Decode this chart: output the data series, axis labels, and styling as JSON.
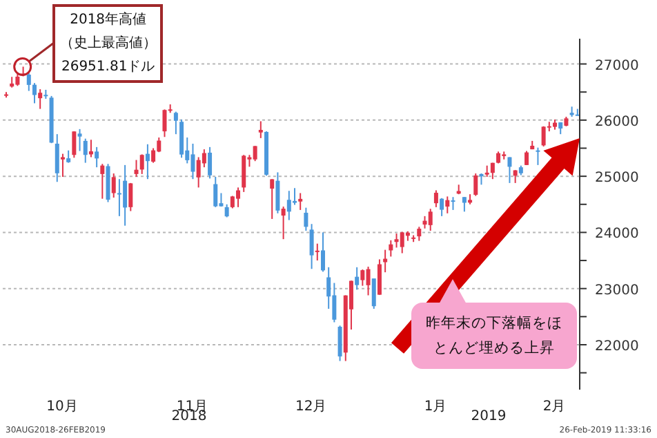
{
  "chart_data": {
    "type": "candlestick",
    "categories": [
      null,
      null,
      null,
      null,
      null,
      null,
      null,
      null,
      null,
      null,
      "10月",
      null,
      null,
      null,
      null,
      null,
      null,
      null,
      null,
      null,
      null,
      null,
      null,
      null,
      null,
      null,
      null,
      null,
      null,
      null,
      null,
      null,
      null,
      "11月",
      null,
      null,
      null,
      null,
      null,
      null,
      null,
      null,
      null,
      null,
      null,
      null,
      null,
      null,
      null,
      null,
      null,
      null,
      null,
      null,
      "12月",
      null,
      null,
      null,
      null,
      null,
      null,
      null,
      null,
      null,
      null,
      null,
      null,
      null,
      null,
      null,
      null,
      null,
      null,
      null,
      null,
      null,
      "1月",
      null,
      null,
      null,
      null,
      null,
      null,
      null,
      null,
      null,
      null,
      null,
      null,
      null,
      null,
      null,
      null,
      null,
      null,
      null,
      null,
      "2月",
      null,
      null,
      null,
      null
    ],
    "ohlc": [
      [
        26440,
        26500,
        26400,
        26458
      ],
      [
        26598,
        26770,
        26580,
        26651
      ],
      [
        26630,
        26830,
        26610,
        26774
      ],
      [
        26820,
        26951.81,
        26780,
        26828
      ],
      [
        26810,
        26840,
        26520,
        26627
      ],
      [
        26630,
        26660,
        26300,
        26447
      ],
      [
        26390,
        26550,
        26200,
        26487
      ],
      [
        26450,
        26540,
        26380,
        26430
      ],
      [
        26400,
        26430,
        25590,
        25599
      ],
      [
        25580,
        25750,
        24900,
        25053
      ],
      [
        25300,
        25400,
        24990,
        25340
      ],
      [
        25320,
        25460,
        25240,
        25250
      ],
      [
        25380,
        25800,
        25330,
        25798
      ],
      [
        25760,
        25840,
        25450,
        25707
      ],
      [
        25630,
        25670,
        25240,
        25380
      ],
      [
        25390,
        25650,
        25340,
        25444
      ],
      [
        25440,
        25520,
        25160,
        25317
      ],
      [
        25040,
        25220,
        24600,
        25191
      ],
      [
        25180,
        25220,
        24540,
        24583
      ],
      [
        24700,
        25050,
        24620,
        24985
      ],
      [
        24700,
        24950,
        24290,
        24688
      ],
      [
        24920,
        25200,
        24120,
        24443
      ],
      [
        24450,
        24880,
        24380,
        24874
      ],
      [
        25040,
        25290,
        24990,
        25116
      ],
      [
        25120,
        25390,
        25040,
        25380
      ],
      [
        25400,
        25570,
        24950,
        25270
      ],
      [
        25260,
        25500,
        25240,
        25462
      ],
      [
        25440,
        25690,
        25430,
        25635
      ],
      [
        25800,
        26190,
        25700,
        26180
      ],
      [
        26190,
        26280,
        26130,
        26191
      ],
      [
        26130,
        26150,
        25750,
        25989
      ],
      [
        25970,
        26010,
        25330,
        25387
      ],
      [
        25460,
        25690,
        25230,
        25286
      ],
      [
        25390,
        25580,
        24950,
        25081
      ],
      [
        24980,
        25340,
        24800,
        25289
      ],
      [
        25230,
        25480,
        25160,
        25413
      ],
      [
        25420,
        25520,
        24960,
        25017
      ],
      [
        24860,
        24990,
        24450,
        24465
      ],
      [
        24520,
        24700,
        24460,
        24465
      ],
      [
        24450,
        24500,
        24270,
        24286
      ],
      [
        24450,
        24650,
        24430,
        24641
      ],
      [
        24600,
        24800,
        24450,
        24749
      ],
      [
        24800,
        25380,
        24720,
        25366
      ],
      [
        25300,
        25380,
        25170,
        25339
      ],
      [
        25300,
        25540,
        25270,
        25538
      ],
      [
        25780,
        25980,
        25680,
        25826
      ],
      [
        25790,
        25800,
        25010,
        25027
      ],
      [
        24780,
        24950,
        24240,
        24947
      ],
      [
        24920,
        25070,
        24340,
        24389
      ],
      [
        24300,
        24460,
        23880,
        24423
      ],
      [
        24580,
        24740,
        24220,
        24370
      ],
      [
        24560,
        24790,
        24490,
        24527
      ],
      [
        24550,
        24700,
        24400,
        24597
      ],
      [
        24350,
        24440,
        24030,
        24100
      ],
      [
        24050,
        24150,
        23350,
        23592
      ],
      [
        23650,
        23800,
        23500,
        23675
      ],
      [
        23680,
        24000,
        23300,
        23324
      ],
      [
        23200,
        23380,
        22640,
        22859
      ],
      [
        22880,
        23100,
        22400,
        22446
      ],
      [
        22320,
        22340,
        21710,
        21792
      ],
      [
        21860,
        22880,
        21710,
        22878
      ],
      [
        22630,
        23140,
        22270,
        23138
      ],
      [
        23210,
        23380,
        22980,
        23062
      ],
      [
        23150,
        23340,
        23050,
        23327
      ],
      [
        23060,
        23390,
        22880,
        23346
      ],
      [
        23180,
        23180,
        22640,
        22686
      ],
      [
        22890,
        23520,
        22890,
        23433
      ],
      [
        23470,
        23690,
        23290,
        23531
      ],
      [
        23680,
        23860,
        23570,
        23787
      ],
      [
        23830,
        23980,
        23730,
        23879
      ],
      [
        23740,
        24010,
        23630,
        24001
      ],
      [
        23940,
        24020,
        23850,
        23996
      ],
      [
        23890,
        23950,
        23830,
        23909
      ],
      [
        23930,
        24100,
        23850,
        24066
      ],
      [
        24140,
        24290,
        24070,
        24207
      ],
      [
        24130,
        24420,
        24030,
        24370
      ],
      [
        24520,
        24750,
        24450,
        24706
      ],
      [
        24600,
        24610,
        24290,
        24404
      ],
      [
        24460,
        24640,
        24340,
        24575
      ],
      [
        24570,
        24630,
        24400,
        24553
      ],
      [
        24690,
        24850,
        24680,
        24737
      ],
      [
        24630,
        24630,
        24370,
        24528
      ],
      [
        24530,
        24680,
        24500,
        24579
      ],
      [
        24670,
        25050,
        24650,
        25014
      ],
      [
        25040,
        25050,
        24850,
        24999
      ],
      [
        25030,
        25190,
        24990,
        25064
      ],
      [
        25060,
        25240,
        24950,
        25239
      ],
      [
        25240,
        25440,
        25230,
        25411
      ],
      [
        25360,
        25440,
        25300,
        25390
      ],
      [
        25340,
        25340,
        24880,
        25169
      ],
      [
        25010,
        25110,
        24880,
        25106
      ],
      [
        25160,
        25190,
        25020,
        25053
      ],
      [
        25200,
        25450,
        25200,
        25425
      ],
      [
        25480,
        25630,
        25480,
        25543
      ],
      [
        25460,
        25510,
        25200,
        25439
      ],
      [
        25550,
        25890,
        25530,
        25883
      ],
      [
        25880,
        25970,
        25800,
        25891
      ],
      [
        25880,
        26010,
        25830,
        25954
      ],
      [
        25960,
        25960,
        25750,
        25850
      ],
      [
        25900,
        26060,
        25890,
        26031
      ],
      [
        26130,
        26240,
        26060,
        26091
      ],
      [
        26100,
        26200,
        26080,
        26090
      ]
    ],
    "colors": [
      "#e0344a",
      "#e0344a",
      "#e0344a",
      "#e0344a",
      "#4b98dc",
      "#4b98dc",
      "#e0344a",
      "#4b98dc",
      "#4b98dc",
      "#4b98dc",
      "#e0344a",
      "#4b98dc",
      "#e0344a",
      "#4b98dc",
      "#4b98dc",
      "#e0344a",
      "#4b98dc",
      "#e0344a",
      "#4b98dc",
      "#e0344a",
      "#4b98dc",
      "#4b98dc",
      "#e0344a",
      "#e0344a",
      "#e0344a",
      "#4b98dc",
      "#e0344a",
      "#e0344a",
      "#e0344a",
      "#e0344a",
      "#4b98dc",
      "#4b98dc",
      "#4b98dc",
      "#4b98dc",
      "#e0344a",
      "#e0344a",
      "#4b98dc",
      "#4b98dc",
      "#4b98dc",
      "#4b98dc",
      "#e0344a",
      "#e0344a",
      "#e0344a",
      "#e0344a",
      "#e0344a",
      "#e0344a",
      "#4b98dc",
      "#e0344a",
      "#4b98dc",
      "#e0344a",
      "#4b98dc",
      "#4b98dc",
      "#e0344a",
      "#4b98dc",
      "#4b98dc",
      "#e0344a",
      "#4b98dc",
      "#4b98dc",
      "#4b98dc",
      "#4b98dc",
      "#e0344a",
      "#e0344a",
      "#4b98dc",
      "#e0344a",
      "#e0344a",
      "#4b98dc",
      "#e0344a",
      "#e0344a",
      "#e0344a",
      "#e0344a",
      "#e0344a",
      "#e0344a",
      "#e0344a",
      "#e0344a",
      "#e0344a",
      "#e0344a",
      "#e0344a",
      "#4b98dc",
      "#e0344a",
      "#4b98dc",
      "#e0344a",
      "#4b98dc",
      "#e0344a",
      "#e0344a",
      "#4b98dc",
      "#e0344a",
      "#e0344a",
      "#e0344a",
      "#e0344a",
      "#4b98dc",
      "#e0344a",
      "#4b98dc",
      "#e0344a",
      "#e0344a",
      "#4b98dc",
      "#e0344a",
      "#e0344a",
      "#e0344a",
      "#4b98dc",
      "#e0344a",
      "#4b98dc",
      "#4b98dc"
    ],
    "ylim": [
      21200,
      27450
    ],
    "yticks": [
      {
        "value": 21500,
        "label": null
      },
      22000,
      {
        "value": 22500,
        "label": null
      },
      23000,
      {
        "value": 23500,
        "label": null
      },
      24000,
      {
        "value": 24500,
        "label": null
      },
      25000,
      {
        "value": 25500,
        "label": null
      },
      26000,
      {
        "value": 26500,
        "label": null
      },
      27000
    ],
    "grid": "y",
    "annotations": [
      "2018年高値（史上最高値）26951.81ドル",
      "昨年末の下落幅をほとんど埋める上昇",
      "2018",
      "2019",
      "30AUG2018-26FEB2019",
      "26-Feb-2019 11:33:16"
    ]
  }
}
